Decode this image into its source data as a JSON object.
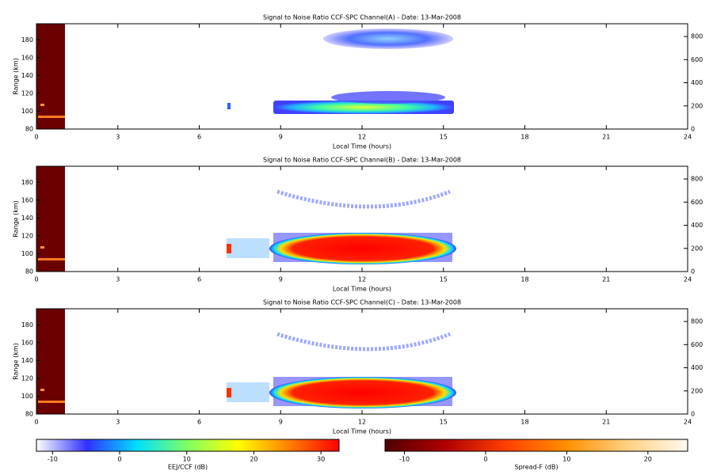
{
  "chart_data": [
    {
      "type": "heatmap",
      "title": "Signal to Noise Ratio CCF-SPC Channel(A) - Date: 13-Mar-2008",
      "xlabel": "Local Time (hours)",
      "ylabel": "Range (km)",
      "xlim": [
        0,
        24
      ],
      "xticks": [
        0,
        3,
        6,
        9,
        12,
        15,
        18,
        21,
        24
      ],
      "ylim": [
        80,
        198
      ],
      "yticks": [
        80,
        100,
        120,
        140,
        160,
        180
      ],
      "y2lim": [
        0,
        910
      ],
      "y2ticks": [
        0,
        200,
        400,
        600,
        800
      ]
    },
    {
      "type": "heatmap",
      "title": "Signal to Noise Ratio CCF-SPC Channel(B) - Date: 13-Mar-2008",
      "xlabel": "Local Time (hours)",
      "ylabel": "Range (km)",
      "xlim": [
        0,
        24
      ],
      "xticks": [
        0,
        3,
        6,
        9,
        12,
        15,
        18,
        21,
        24
      ],
      "ylim": [
        80,
        198
      ],
      "yticks": [
        80,
        100,
        120,
        140,
        160,
        180
      ],
      "y2lim": [
        0,
        910
      ],
      "y2ticks": [
        0,
        200,
        400,
        600,
        800
      ]
    },
    {
      "type": "heatmap",
      "title": "Signal to Noise Ratio CCF-SPC Channel(C) - Date: 13-Mar-2008",
      "xlabel": "Local Time (hours)",
      "ylabel": "Range (km)",
      "xlim": [
        0,
        24
      ],
      "xticks": [
        0,
        3,
        6,
        9,
        12,
        15,
        18,
        21,
        24
      ],
      "ylim": [
        80,
        198
      ],
      "yticks": [
        80,
        100,
        120,
        140,
        160,
        180
      ],
      "y2lim": [
        0,
        910
      ],
      "y2ticks": [
        0,
        200,
        400,
        600,
        800
      ]
    }
  ],
  "colorbars": [
    {
      "label": "EEJ/CCF (dB)",
      "lim": [
        -12.4,
        32.7
      ],
      "ticks": [
        -10,
        0,
        10,
        20,
        30
      ],
      "colors": [
        "#ffffff",
        "#3030ff",
        "#00e0ff",
        "#80ff60",
        "#ffff00",
        "#ff8000",
        "#ff0000"
      ]
    },
    {
      "label": "Spread-F (dB)",
      "lim": [
        -12.4,
        24.9
      ],
      "ticks": [
        -10,
        0,
        10,
        20
      ],
      "colors": [
        "#500000",
        "#b00000",
        "#ff4000",
        "#ff9000",
        "#ffd080",
        "#fffaf0"
      ]
    }
  ]
}
